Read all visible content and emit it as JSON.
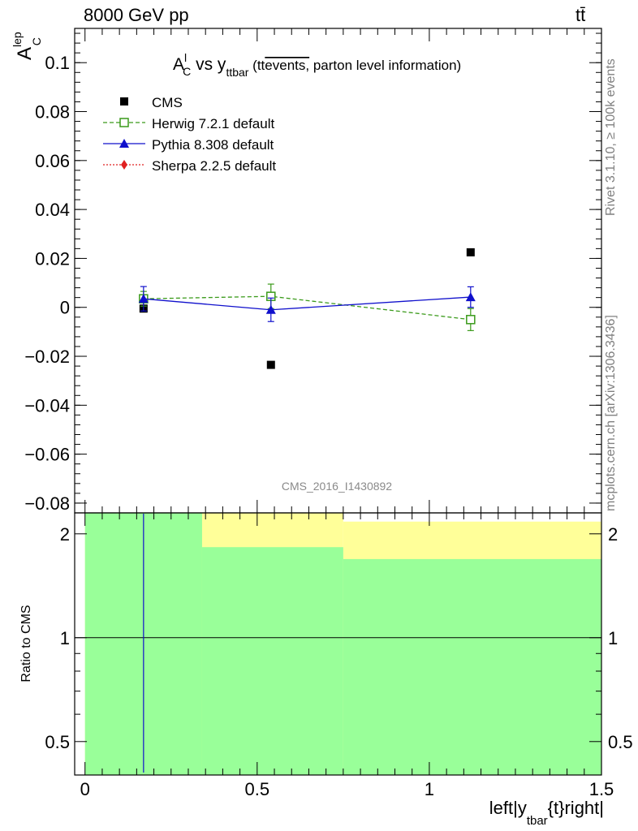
{
  "header": {
    "energy": "8000 GeV pp",
    "process": "tt̄"
  },
  "side_labels": {
    "rivet": "Rivet 3.1.10, ≥ 100k events",
    "mcplots": "mcplots.cern.ch [arXiv:1306.3436]"
  },
  "chart_data": [
    {
      "type": "scatter",
      "title": "A_C^l vs y_ttbar (tt̄ events, parton level information)",
      "title_parts": {
        "a": "A",
        "a_sub": "C",
        "a_sup": "l",
        "vs": " vs y",
        "y_sub": "ttbar",
        "paren": " (tt",
        "events": "events,",
        "rest": " parton level information)"
      },
      "ylabel": "A_C^lep",
      "ylabel_parts": {
        "base": "A",
        "sub": "C",
        "sup": "lep"
      },
      "watermark": "CMS_2016_I1430892",
      "xlim": [
        -0.03,
        1.5
      ],
      "ylim": [
        -0.084,
        0.114
      ],
      "yticks": [
        -0.08,
        -0.06,
        -0.04,
        -0.02,
        0,
        0.02,
        0.04,
        0.06,
        0.08,
        0.1
      ],
      "ytick_labels": [
        "−0.08",
        "−0.06",
        "−0.04",
        "−0.02",
        "0",
        "0.02",
        "0.04",
        "0.06",
        "0.08",
        "0.1"
      ],
      "legend_position": "top-left",
      "series": [
        {
          "name": "CMS",
          "color": "#000000",
          "marker": "square-filled",
          "line": "none",
          "x": [
            0.17,
            0.54,
            1.12
          ],
          "y": [
            -0.0005,
            -0.0235,
            0.0225
          ],
          "err": [
            0,
            0,
            0
          ]
        },
        {
          "name": "Herwig 7.2.1 default",
          "color": "#3a9a1a",
          "marker": "square-open",
          "line": "dashed",
          "x": [
            0.17,
            0.54,
            1.12
          ],
          "y": [
            0.0035,
            0.0045,
            -0.005
          ],
          "err": [
            0.003,
            0.005,
            0.0045
          ]
        },
        {
          "name": "Pythia 8.308 default",
          "color": "#1010cc",
          "marker": "triangle",
          "line": "solid",
          "x": [
            0.17,
            0.54,
            1.12
          ],
          "y": [
            0.0035,
            -0.001,
            0.0042
          ],
          "err": [
            0.005,
            0.0048,
            0.0042
          ]
        },
        {
          "name": "Sherpa 2.2.5 default",
          "color": "#e02020",
          "marker": "diamond",
          "line": "dotted",
          "x": [],
          "y": [],
          "err": []
        }
      ]
    },
    {
      "type": "area",
      "ylabel": "Ratio to CMS",
      "xlabel": "left|y_tbar{t}right|",
      "xlabel_parts": {
        "a": "left|y",
        "sub": "tbar",
        "b": "{t}right|"
      },
      "xlim": [
        -0.03,
        1.5
      ],
      "ylim": [
        0.4,
        2.3
      ],
      "xticks": [
        0,
        0.5,
        1,
        1.5
      ],
      "xtick_labels": [
        "0",
        "0.5",
        "1",
        "1.5"
      ],
      "yticks": [
        0.5,
        1,
        2
      ],
      "ytick_labels": [
        "0.5",
        "1",
        "2"
      ],
      "reference": 1,
      "bands": [
        {
          "name": "band-yellow",
          "color": "#ffff99",
          "x0": [
            0.0,
            0.34,
            0.75
          ],
          "x1": [
            0.34,
            0.75,
            1.5
          ],
          "lo": [
            0.4,
            0.4,
            0.4
          ],
          "hi": [
            2.3,
            2.3,
            2.17
          ]
        },
        {
          "name": "band-green",
          "color": "#99ff99",
          "x0": [
            0.0,
            0.34,
            0.75
          ],
          "x1": [
            0.34,
            0.75,
            1.5
          ],
          "lo": [
            0.4,
            0.4,
            0.4
          ],
          "hi": [
            2.3,
            1.83,
            1.69
          ]
        }
      ],
      "vline": {
        "x": 0.17,
        "color": "#1010cc"
      }
    }
  ]
}
